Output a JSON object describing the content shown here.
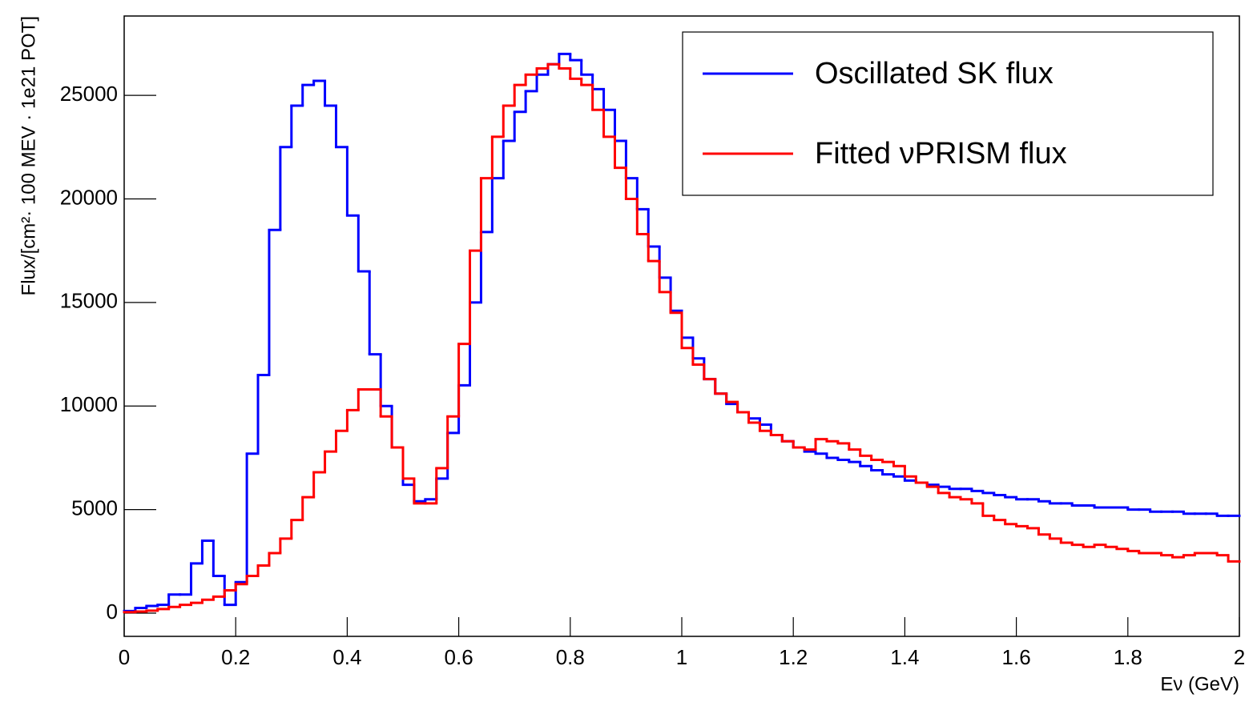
{
  "chart_data": {
    "type": "histogram",
    "x_label": "Eν (GeV)",
    "y_label": "Flux/[cm²· 100 MEV · 1e21 POT]",
    "bins": [
      0,
      0.02,
      0.04,
      0.06,
      0.08,
      0.1,
      0.12,
      0.14,
      0.16,
      0.18,
      0.2,
      0.22,
      0.24,
      0.26,
      0.28,
      0.3,
      0.32,
      0.34,
      0.36,
      0.38,
      0.4,
      0.42,
      0.44,
      0.46,
      0.48,
      0.5,
      0.52,
      0.54,
      0.56,
      0.58,
      0.6,
      0.62,
      0.64,
      0.66,
      0.68,
      0.7,
      0.72,
      0.74,
      0.76,
      0.78,
      0.8,
      0.82,
      0.84,
      0.86,
      0.88,
      0.9,
      0.92,
      0.94,
      0.96,
      0.98,
      1,
      1.02,
      1.04,
      1.06,
      1.08,
      1.1,
      1.12,
      1.14,
      1.16,
      1.18,
      1.2,
      1.22,
      1.24,
      1.26,
      1.28,
      1.3,
      1.32,
      1.34,
      1.36,
      1.38,
      1.4,
      1.42,
      1.44,
      1.46,
      1.48,
      1.5,
      1.52,
      1.54,
      1.56,
      1.58,
      1.6,
      1.62,
      1.64,
      1.66,
      1.68,
      1.7,
      1.72,
      1.74,
      1.76,
      1.78,
      1.8,
      1.82,
      1.84,
      1.86,
      1.88,
      1.9,
      1.92,
      1.94,
      1.96,
      1.98,
      2
    ],
    "series": [
      {
        "name": "Oscillated SK flux",
        "color": "#0000ff",
        "values": [
          100,
          250,
          350,
          400,
          900,
          900,
          2400,
          3500,
          1800,
          400,
          1500,
          7700,
          11500,
          18500,
          22500,
          24500,
          25500,
          25700,
          24500,
          22500,
          19200,
          16500,
          12500,
          10000,
          8000,
          6200,
          5400,
          5500,
          6500,
          8700,
          11000,
          15000,
          18400,
          21000,
          22800,
          24200,
          25200,
          26000,
          26500,
          27000,
          26700,
          26000,
          25300,
          24300,
          22800,
          21000,
          19500,
          17700,
          16200,
          14600,
          13300,
          12300,
          11300,
          10600,
          10100,
          9700,
          9400,
          9100,
          8600,
          8300,
          8000,
          7800,
          7700,
          7500,
          7400,
          7300,
          7100,
          6900,
          6700,
          6600,
          6400,
          6300,
          6200,
          6100,
          6000,
          6000,
          5900,
          5800,
          5700,
          5600,
          5500,
          5500,
          5400,
          5300,
          5300,
          5200,
          5200,
          5100,
          5100,
          5100,
          5000,
          5000,
          4900,
          4900,
          4900,
          4800,
          4800,
          4800,
          4700,
          4700
        ]
      },
      {
        "name": "Fitted νPRISM flux",
        "color": "#ff0000",
        "values": [
          50,
          80,
          120,
          200,
          300,
          400,
          500,
          650,
          800,
          1100,
          1400,
          1800,
          2300,
          2900,
          3600,
          4500,
          5600,
          6800,
          7800,
          8800,
          9800,
          10800,
          10800,
          9500,
          8000,
          6500,
          5300,
          5300,
          7000,
          9500,
          13000,
          17500,
          21000,
          23000,
          24500,
          25500,
          26000,
          26300,
          26500,
          26300,
          25800,
          25500,
          24300,
          23000,
          21500,
          20000,
          18300,
          17000,
          15500,
          14500,
          12800,
          12000,
          11300,
          10600,
          10200,
          9700,
          9200,
          8800,
          8600,
          8300,
          8000,
          7900,
          8400,
          8300,
          8200,
          7900,
          7600,
          7400,
          7300,
          7100,
          6600,
          6300,
          6100,
          5800,
          5600,
          5500,
          5300,
          4700,
          4500,
          4300,
          4200,
          4100,
          3800,
          3600,
          3400,
          3300,
          3200,
          3300,
          3200,
          3100,
          3000,
          2900,
          2900,
          2800,
          2700,
          2800,
          2900,
          2900,
          2800,
          2500
        ]
      }
    ],
    "xlim": [
      0,
      2
    ],
    "xticks": [
      0,
      0.2,
      0.4,
      0.6,
      0.8,
      1,
      1.2,
      1.4,
      1.6,
      1.8,
      2
    ],
    "ylim": [
      -1120,
      28830
    ],
    "yticks": [
      0,
      5000,
      10000,
      15000,
      20000,
      25000
    ],
    "legend": "upper right"
  }
}
